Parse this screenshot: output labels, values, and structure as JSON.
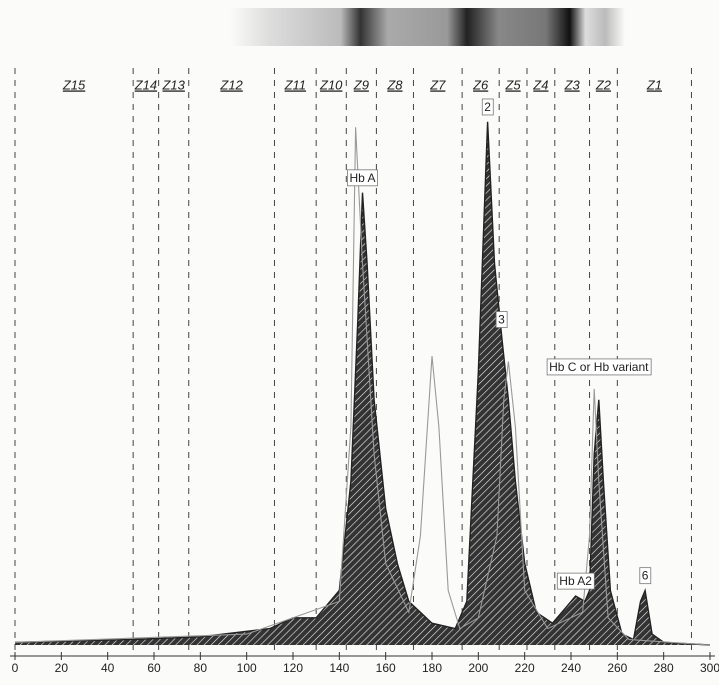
{
  "chart_data": {
    "type": "line",
    "xlim": [
      0,
      300
    ],
    "ylim": [
      0,
      100
    ],
    "xticks": [
      0,
      20,
      40,
      60,
      80,
      100,
      120,
      140,
      160,
      180,
      200,
      220,
      240,
      260,
      280,
      300
    ],
    "zones": [
      {
        "label": "Z15",
        "from": 0,
        "to": 51
      },
      {
        "label": "Z14",
        "from": 51,
        "to": 62
      },
      {
        "label": "Z13",
        "from": 62,
        "to": 75
      },
      {
        "label": "Z12",
        "from": 75,
        "to": 112
      },
      {
        "label": "Z11",
        "from": 112,
        "to": 130
      },
      {
        "label": "Z10",
        "from": 130,
        "to": 143
      },
      {
        "label": "Z9",
        "from": 143,
        "to": 156
      },
      {
        "label": "Z8",
        "from": 156,
        "to": 172
      },
      {
        "label": "Z7",
        "from": 172,
        "to": 193
      },
      {
        "label": "Z6",
        "from": 193,
        "to": 209
      },
      {
        "label": "Z5",
        "from": 209,
        "to": 221
      },
      {
        "label": "Z4",
        "from": 221,
        "to": 233
      },
      {
        "label": "Z3",
        "from": 233,
        "to": 248
      },
      {
        "label": "Z2",
        "from": 248,
        "to": 260
      },
      {
        "label": "Z1",
        "from": 260,
        "to": 292
      }
    ],
    "series": [
      {
        "color": "#222222",
        "x": [
          0,
          50,
          80,
          110,
          120,
          130,
          140,
          145,
          148,
          150,
          152,
          155,
          160,
          165,
          170,
          180,
          190,
          195,
          200,
          204,
          207,
          210,
          213,
          216,
          220,
          225,
          232,
          238,
          242,
          246,
          248,
          250,
          252,
          254,
          257,
          262,
          267,
          270,
          272,
          275,
          280,
          300
        ],
        "values": [
          0.5,
          1,
          1.5,
          3,
          5,
          5,
          10,
          30,
          60,
          83,
          70,
          45,
          25,
          15,
          8,
          4,
          3,
          8,
          50,
          96,
          70,
          57,
          45,
          30,
          15,
          6,
          4,
          7,
          9,
          8,
          10,
          35,
          45,
          30,
          10,
          2,
          1,
          8,
          10,
          2,
          0.5,
          0
        ]
      },
      {
        "color": "#999999",
        "x": [
          0,
          100,
          140,
          145,
          147,
          150,
          155,
          160,
          170,
          175,
          178,
          180,
          183,
          187,
          192,
          200,
          208,
          211,
          213,
          216,
          220,
          230,
          245,
          248,
          250,
          252,
          256,
          265,
          300
        ],
        "values": [
          0.5,
          2,
          8,
          40,
          95,
          70,
          35,
          15,
          6,
          20,
          40,
          53,
          40,
          10,
          3,
          5,
          20,
          45,
          52,
          40,
          10,
          3,
          6,
          20,
          47,
          30,
          5,
          1,
          0
        ]
      }
    ],
    "annotations": [
      {
        "text": "Hb A",
        "x": 150
      },
      {
        "text": "2",
        "x": 204
      },
      {
        "text": "3",
        "x": 210
      },
      {
        "text": "Hb C or Hb variant",
        "x": 252
      },
      {
        "text": "Hb A2",
        "x": 242
      },
      {
        "text": "6",
        "x": 272
      }
    ]
  }
}
